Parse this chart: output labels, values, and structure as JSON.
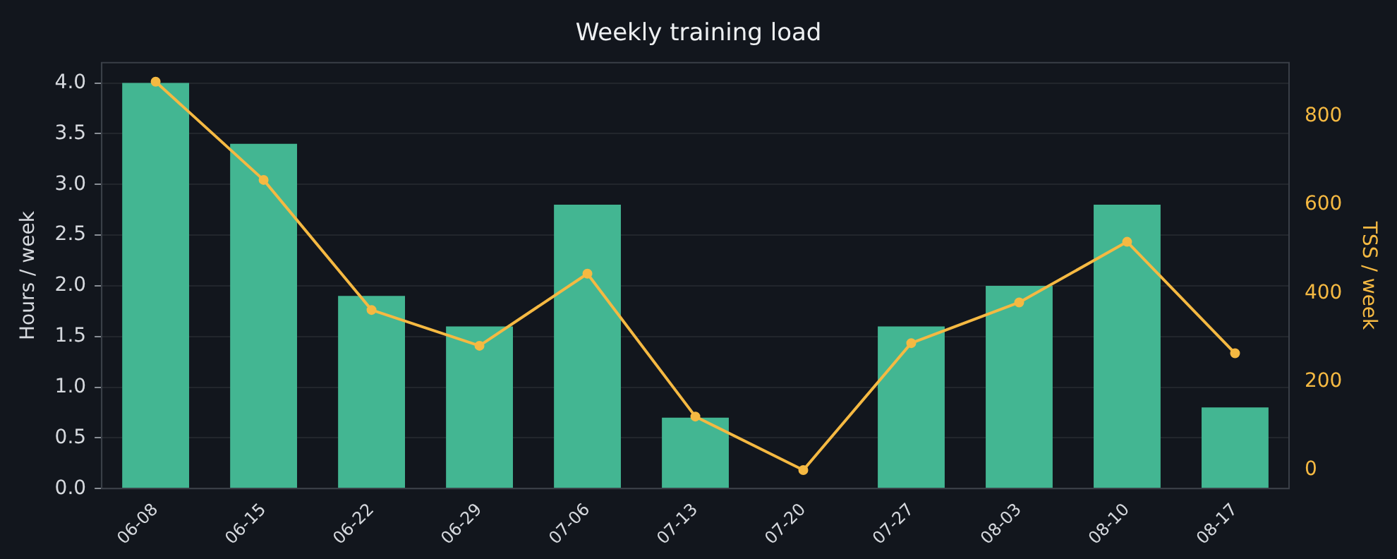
{
  "chart_data": {
    "type": "bar",
    "title": "Weekly training load",
    "ylabel": "Hours / week",
    "y2label": "TSS / week",
    "categories": [
      "06-08",
      "06-15",
      "06-22",
      "06-29",
      "07-06",
      "07-13",
      "07-20",
      "07-27",
      "08-03",
      "08-10",
      "08-17"
    ],
    "series": [
      {
        "color": "#43b692",
        "values": [
          4.0,
          3.4,
          1.9,
          1.6,
          2.8,
          0.7,
          0,
          1.6,
          2.0,
          2.8,
          0.8
        ]
      },
      {
        "type": "line",
        "axis": "y2",
        "color": "#f5b942",
        "marker": "circle",
        "values": [
          878,
          656,
          362,
          281,
          444,
          121,
          0,
          287,
          379,
          516,
          264
        ]
      }
    ],
    "ylim": [
      0,
      4.2
    ],
    "yticks": [
      {
        "value": 0,
        "label": "0.0"
      },
      0.5,
      {
        "value": 1,
        "label": "1.0"
      },
      1.5,
      {
        "value": 2,
        "label": "2.0"
      },
      2.5,
      {
        "value": 3,
        "label": "3.0"
      },
      3.5,
      {
        "value": 4,
        "label": "4.0"
      }
    ],
    "y2lim": [
      -42,
      921
    ],
    "y2ticks": [
      0,
      200,
      400,
      600,
      800
    ],
    "grid": "y",
    "legend": false
  }
}
